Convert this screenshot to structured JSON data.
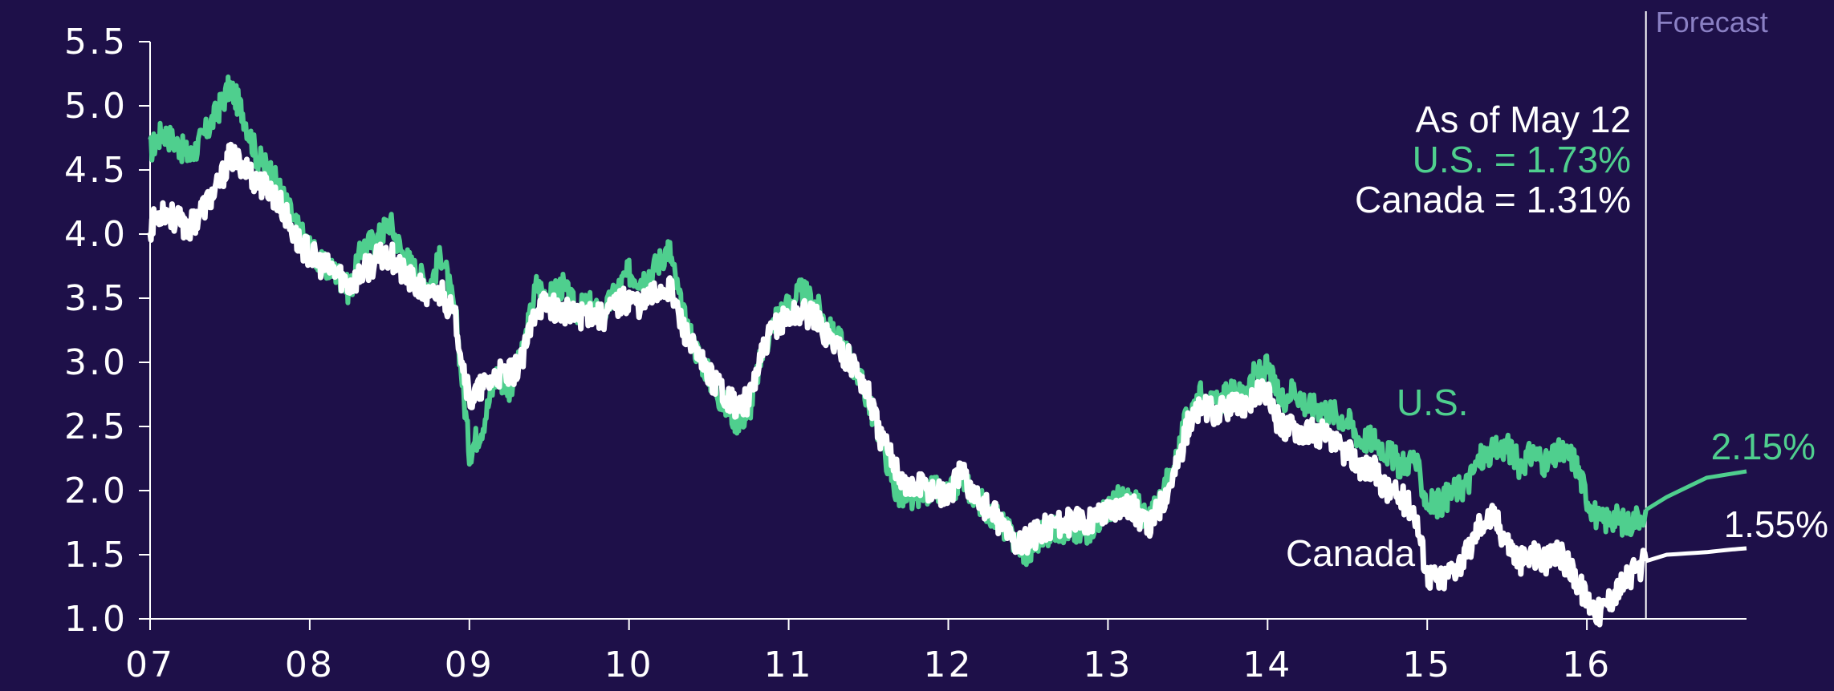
{
  "chart_data": {
    "type": "line",
    "title": "",
    "xlabel": "",
    "ylabel": "",
    "ylim": [
      1.0,
      5.5
    ],
    "xlim": [
      2007.0,
      2017.0
    ],
    "yticks": [
      "5.5",
      "5.0",
      "4.5",
      "4.0",
      "3.5",
      "3.0",
      "2.5",
      "2.0",
      "1.5",
      "1.0"
    ],
    "xticks": [
      "07",
      "08",
      "09",
      "10",
      "11",
      "12",
      "13",
      "14",
      "15",
      "16"
    ],
    "forecast_start": 2016.37,
    "forecast_label": "Forecast",
    "annotation": {
      "line1": "As of May 12",
      "line2": "U.S. = 1.73%",
      "line3": "Canada = 1.31%"
    },
    "series": [
      {
        "name": "U.S.",
        "color": "#4fcf8e",
        "end_label": "2.15%",
        "x": [
          2007.0,
          2007.08,
          2007.17,
          2007.25,
          2007.33,
          2007.42,
          2007.5,
          2007.58,
          2007.67,
          2007.75,
          2007.83,
          2007.92,
          2008.0,
          2008.08,
          2008.17,
          2008.25,
          2008.33,
          2008.42,
          2008.5,
          2008.58,
          2008.67,
          2008.75,
          2008.83,
          2008.92,
          2009.0,
          2009.08,
          2009.17,
          2009.25,
          2009.33,
          2009.42,
          2009.5,
          2009.58,
          2009.67,
          2009.75,
          2009.83,
          2009.92,
          2010.0,
          2010.08,
          2010.17,
          2010.25,
          2010.33,
          2010.42,
          2010.5,
          2010.58,
          2010.67,
          2010.75,
          2010.83,
          2010.92,
          2011.0,
          2011.08,
          2011.17,
          2011.25,
          2011.33,
          2011.42,
          2011.5,
          2011.58,
          2011.67,
          2011.75,
          2011.83,
          2011.92,
          2012.0,
          2012.08,
          2012.17,
          2012.25,
          2012.33,
          2012.42,
          2012.5,
          2012.58,
          2012.67,
          2012.75,
          2012.83,
          2012.92,
          2013.0,
          2013.08,
          2013.17,
          2013.25,
          2013.33,
          2013.42,
          2013.5,
          2013.58,
          2013.67,
          2013.75,
          2013.83,
          2013.92,
          2014.0,
          2014.08,
          2014.17,
          2014.25,
          2014.33,
          2014.42,
          2014.5,
          2014.58,
          2014.67,
          2014.75,
          2014.83,
          2014.92,
          2015.0,
          2015.08,
          2015.17,
          2015.25,
          2015.33,
          2015.42,
          2015.5,
          2015.58,
          2015.67,
          2015.75,
          2015.83,
          2015.92,
          2016.0,
          2016.08,
          2016.17,
          2016.25,
          2016.37,
          2016.5,
          2016.75,
          2016.9,
          2017.0
        ],
        "values": [
          4.65,
          4.8,
          4.7,
          4.6,
          4.75,
          4.95,
          5.15,
          4.95,
          4.6,
          4.5,
          4.3,
          4.05,
          3.9,
          3.75,
          3.7,
          3.55,
          3.9,
          3.95,
          4.1,
          3.85,
          3.7,
          3.6,
          3.85,
          3.3,
          2.3,
          2.5,
          2.9,
          2.8,
          3.05,
          3.6,
          3.5,
          3.6,
          3.4,
          3.45,
          3.35,
          3.55,
          3.7,
          3.65,
          3.75,
          3.9,
          3.4,
          3.1,
          2.9,
          2.7,
          2.55,
          2.6,
          3.05,
          3.35,
          3.45,
          3.55,
          3.45,
          3.25,
          3.15,
          2.95,
          2.7,
          2.4,
          2.0,
          1.9,
          2.0,
          2.0,
          1.95,
          2.1,
          1.95,
          1.85,
          1.75,
          1.6,
          1.5,
          1.65,
          1.7,
          1.7,
          1.65,
          1.75,
          1.85,
          1.95,
          1.9,
          1.75,
          1.95,
          2.2,
          2.6,
          2.75,
          2.65,
          2.75,
          2.75,
          2.9,
          2.95,
          2.7,
          2.8,
          2.65,
          2.65,
          2.6,
          2.55,
          2.4,
          2.4,
          2.3,
          2.2,
          2.25,
          1.9,
          1.9,
          2.0,
          2.05,
          2.25,
          2.3,
          2.35,
          2.2,
          2.3,
          2.2,
          2.3,
          2.25,
          1.95,
          1.75,
          1.8,
          1.73,
          1.85,
          1.95,
          2.1,
          2.13,
          2.15
        ]
      },
      {
        "name": "Canada",
        "color": "#ffffff",
        "end_label": "1.55%",
        "x": [
          2007.0,
          2007.08,
          2007.17,
          2007.25,
          2007.33,
          2007.42,
          2007.5,
          2007.58,
          2007.67,
          2007.75,
          2007.83,
          2007.92,
          2008.0,
          2008.08,
          2008.17,
          2008.25,
          2008.33,
          2008.42,
          2008.5,
          2008.58,
          2008.67,
          2008.75,
          2008.83,
          2008.92,
          2009.0,
          2009.08,
          2009.17,
          2009.25,
          2009.33,
          2009.42,
          2009.5,
          2009.58,
          2009.67,
          2009.75,
          2009.83,
          2009.92,
          2010.0,
          2010.08,
          2010.17,
          2010.25,
          2010.33,
          2010.42,
          2010.5,
          2010.58,
          2010.67,
          2010.75,
          2010.83,
          2010.92,
          2011.0,
          2011.08,
          2011.17,
          2011.25,
          2011.33,
          2011.42,
          2011.5,
          2011.58,
          2011.67,
          2011.75,
          2011.83,
          2011.92,
          2012.0,
          2012.08,
          2012.17,
          2012.25,
          2012.33,
          2012.42,
          2012.5,
          2012.58,
          2012.67,
          2012.75,
          2012.83,
          2012.92,
          2013.0,
          2013.08,
          2013.17,
          2013.25,
          2013.33,
          2013.42,
          2013.5,
          2013.58,
          2013.67,
          2013.75,
          2013.83,
          2013.92,
          2014.0,
          2014.08,
          2014.17,
          2014.25,
          2014.33,
          2014.42,
          2014.5,
          2014.58,
          2014.67,
          2014.75,
          2014.83,
          2014.92,
          2015.0,
          2015.08,
          2015.17,
          2015.25,
          2015.33,
          2015.42,
          2015.5,
          2015.58,
          2015.67,
          2015.75,
          2015.83,
          2015.92,
          2016.0,
          2016.08,
          2016.17,
          2016.25,
          2016.37,
          2016.5,
          2016.75,
          2016.9,
          2017.0
        ],
        "values": [
          4.05,
          4.2,
          4.1,
          4.05,
          4.2,
          4.35,
          4.6,
          4.55,
          4.4,
          4.35,
          4.2,
          3.95,
          3.85,
          3.75,
          3.7,
          3.6,
          3.7,
          3.8,
          3.85,
          3.7,
          3.6,
          3.5,
          3.55,
          3.3,
          2.7,
          2.8,
          2.9,
          2.9,
          3.0,
          3.45,
          3.45,
          3.4,
          3.35,
          3.4,
          3.35,
          3.45,
          3.5,
          3.45,
          3.55,
          3.6,
          3.3,
          3.05,
          2.9,
          2.8,
          2.65,
          2.7,
          3.05,
          3.3,
          3.35,
          3.4,
          3.35,
          3.2,
          3.1,
          2.95,
          2.75,
          2.4,
          2.2,
          2.0,
          2.05,
          2.0,
          1.95,
          2.15,
          1.95,
          1.85,
          1.75,
          1.6,
          1.6,
          1.7,
          1.75,
          1.75,
          1.75,
          1.8,
          1.85,
          1.9,
          1.85,
          1.7,
          1.9,
          2.15,
          2.5,
          2.65,
          2.6,
          2.65,
          2.65,
          2.75,
          2.75,
          2.5,
          2.5,
          2.45,
          2.45,
          2.35,
          2.3,
          2.2,
          2.15,
          2.0,
          1.95,
          1.85,
          1.35,
          1.3,
          1.4,
          1.5,
          1.75,
          1.8,
          1.6,
          1.45,
          1.5,
          1.45,
          1.5,
          1.35,
          1.15,
          1.05,
          1.2,
          1.31,
          1.45,
          1.5,
          1.52,
          1.54,
          1.55
        ]
      }
    ],
    "series_labels": [
      {
        "text": "U.S.",
        "series": 0,
        "at_x": 2014.85
      },
      {
        "text": "Canada",
        "series": 1,
        "at_x": 2014.6
      }
    ]
  }
}
